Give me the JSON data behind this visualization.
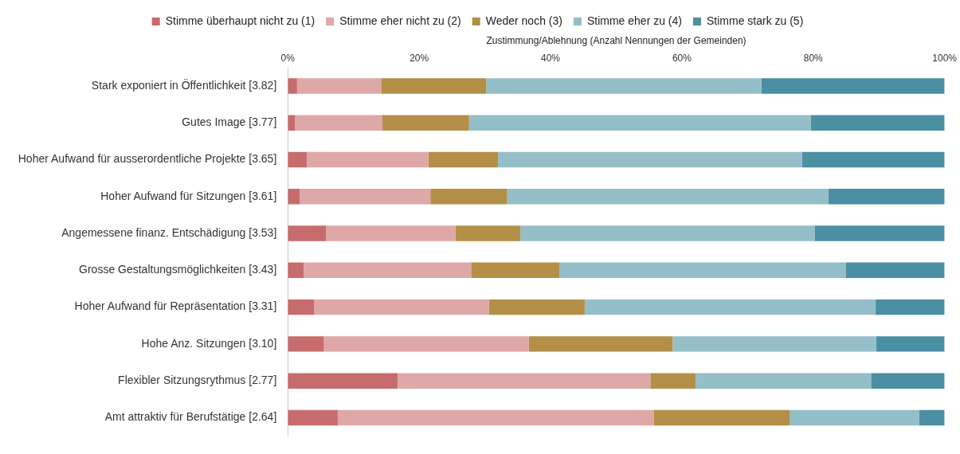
{
  "chart_data": {
    "type": "bar",
    "orientation": "horizontal",
    "stacked": true,
    "xlabel": "Zustimmung/Ablehnung (Anzahl Nennungen der Gemeinden)",
    "categories": [
      "Stark exponiert in Öffentlichkeit [3.82]",
      "Gutes Image [3.77]",
      "Hoher Aufwand für ausserordentliche Projekte [3.65]",
      "Hoher Aufwand für Sitzungen [3.61]",
      "Angemessene finanz. Entschädigung [3.53]",
      "Grosse Gestaltungsmöglichkeiten [3.43]",
      "Hoher Aufwand für Repräsentation [3.31]",
      "Hohe Anz. Sitzungen [3.10]",
      "Flexibler Sitzungsrythmus [2.77]",
      "Amt attraktiv für Berufstätige [2.64]"
    ],
    "series": [
      {
        "name": "Stimme überhaupt nicht zu (1)",
        "color": "#c76c6c",
        "values": [
          1.4,
          1.1,
          2.9,
          1.8,
          5.8,
          2.4,
          4.0,
          5.5,
          16.7,
          7.6
        ]
      },
      {
        "name": "Stimme eher nicht zu (2)",
        "color": "#dfa8a8",
        "values": [
          12.8,
          13.3,
          18.5,
          19.9,
          19.7,
          25.5,
          26.6,
          31.2,
          38.5,
          48.1
        ]
      },
      {
        "name": "Weder noch (3)",
        "color": "#b38f47",
        "values": [
          16.0,
          13.2,
          10.6,
          11.7,
          9.9,
          13.5,
          14.6,
          21.9,
          6.9,
          20.7
        ]
      },
      {
        "name": "Stimme eher zu (4)",
        "color": "#94bec8",
        "values": [
          41.9,
          52.0,
          46.3,
          48.9,
          44.8,
          43.6,
          44.3,
          31.0,
          26.7,
          19.7
        ]
      },
      {
        "name": "Stimme stark zu (5)",
        "color": "#4a8fa2",
        "values": [
          27.9,
          20.4,
          21.7,
          17.7,
          19.8,
          15.0,
          10.5,
          10.4,
          11.2,
          3.9
        ]
      }
    ],
    "xlim": [
      0,
      100
    ],
    "xticks": [
      {
        "value": 0,
        "label": "0%"
      },
      {
        "value": 20,
        "label": "20%"
      },
      {
        "value": 40,
        "label": "40%"
      },
      {
        "value": 60,
        "label": "60%"
      },
      {
        "value": 80,
        "label": "80%"
      },
      {
        "value": 100,
        "label": "100%"
      }
    ],
    "grid": false,
    "legend": "top"
  }
}
